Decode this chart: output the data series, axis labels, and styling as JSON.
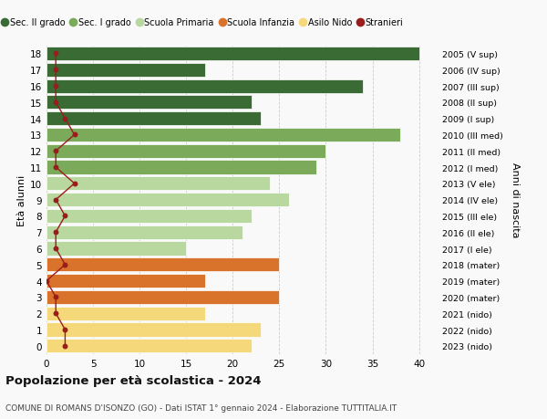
{
  "ages": [
    18,
    17,
    16,
    15,
    14,
    13,
    12,
    11,
    10,
    9,
    8,
    7,
    6,
    5,
    4,
    3,
    2,
    1,
    0
  ],
  "right_labels": [
    "2005 (V sup)",
    "2006 (IV sup)",
    "2007 (III sup)",
    "2008 (II sup)",
    "2009 (I sup)",
    "2010 (III med)",
    "2011 (II med)",
    "2012 (I med)",
    "2013 (V ele)",
    "2014 (IV ele)",
    "2015 (III ele)",
    "2016 (II ele)",
    "2017 (I ele)",
    "2018 (mater)",
    "2019 (mater)",
    "2020 (mater)",
    "2021 (nido)",
    "2022 (nido)",
    "2023 (nido)"
  ],
  "bar_values": [
    40,
    17,
    34,
    22,
    23,
    38,
    30,
    29,
    24,
    26,
    22,
    21,
    15,
    25,
    17,
    25,
    17,
    23,
    22
  ],
  "bar_colors": [
    "#3a6b35",
    "#3a6b35",
    "#3a6b35",
    "#3a6b35",
    "#3a6b35",
    "#7aaa5a",
    "#7aaa5a",
    "#7aaa5a",
    "#b8d8a0",
    "#b8d8a0",
    "#b8d8a0",
    "#b8d8a0",
    "#b8d8a0",
    "#d9732b",
    "#d9732b",
    "#d9732b",
    "#f5d87a",
    "#f5d87a",
    "#f5d87a"
  ],
  "stranieri_values": [
    1,
    1,
    1,
    1,
    2,
    3,
    1,
    1,
    3,
    1,
    2,
    1,
    1,
    2,
    0,
    1,
    1,
    2,
    2
  ],
  "stranieri_color": "#9b1c1c",
  "legend_items": [
    {
      "label": "Sec. II grado",
      "color": "#3a6b35"
    },
    {
      "label": "Sec. I grado",
      "color": "#7aaa5a"
    },
    {
      "label": "Scuola Primaria",
      "color": "#b8d8a0"
    },
    {
      "label": "Scuola Infanzia",
      "color": "#d9732b"
    },
    {
      "label": "Asilo Nido",
      "color": "#f5d87a"
    },
    {
      "label": "Stranieri",
      "color": "#9b1c1c"
    }
  ],
  "ylabel_left": "Età alunni",
  "ylabel_right": "Anni di nascita",
  "title": "Popolazione per età scolastica - 2024",
  "subtitle": "COMUNE DI ROMANS D'ISONZO (GO) - Dati ISTAT 1° gennaio 2024 - Elaborazione TUTTITALIA.IT",
  "xlim": [
    0,
    42
  ],
  "xticks": [
    0,
    5,
    10,
    15,
    20,
    25,
    30,
    35,
    40
  ],
  "bg_color": "#f9f9f9",
  "grid_color": "#cccccc"
}
